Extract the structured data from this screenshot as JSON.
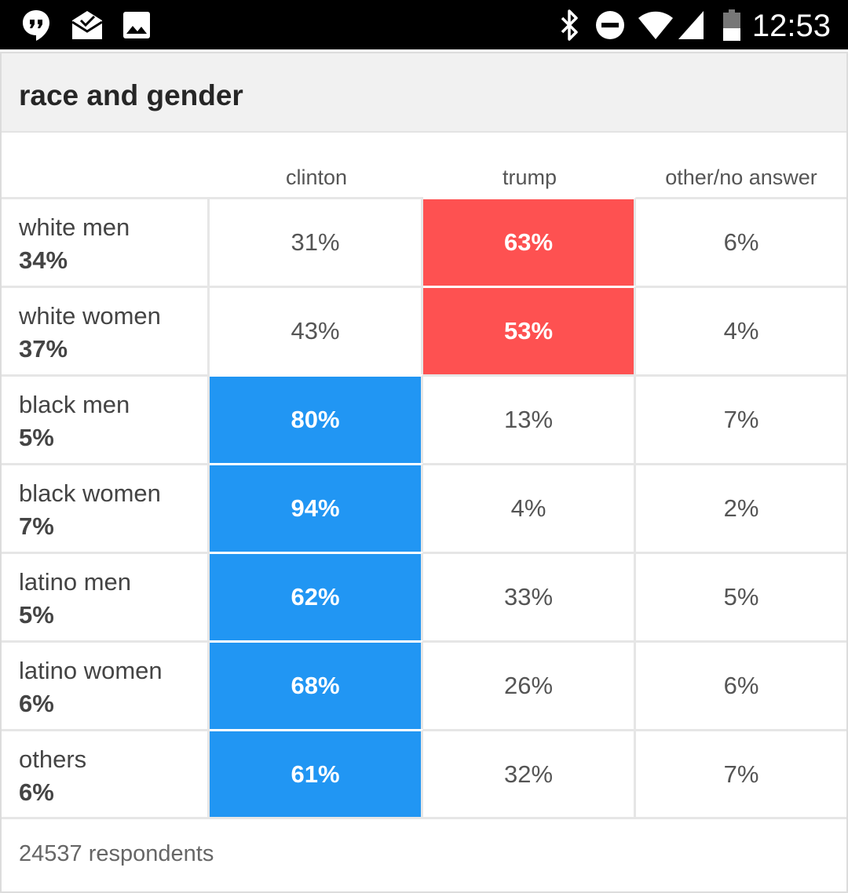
{
  "status_bar": {
    "time": "12:53",
    "left_icons": [
      "hangouts-icon",
      "mail-icon",
      "image-icon"
    ],
    "right_icons": [
      "bluetooth-icon",
      "do-not-disturb-icon",
      "wifi-icon",
      "signal-icon",
      "battery-icon"
    ]
  },
  "card": {
    "title": "race and gender",
    "columns": [
      "clinton",
      "trump",
      "other/no answer"
    ],
    "rows": [
      {
        "name": "white men",
        "share": "34%",
        "values": [
          "31%",
          "63%",
          "6%"
        ]
      },
      {
        "name": "white women",
        "share": "37%",
        "values": [
          "43%",
          "53%",
          "4%"
        ]
      },
      {
        "name": "black men",
        "share": "5%",
        "values": [
          "80%",
          "13%",
          "7%"
        ]
      },
      {
        "name": "black women",
        "share": "7%",
        "values": [
          "94%",
          "4%",
          "2%"
        ]
      },
      {
        "name": "latino men",
        "share": "5%",
        "values": [
          "62%",
          "33%",
          "5%"
        ]
      },
      {
        "name": "latino women",
        "share": "6%",
        "values": [
          "68%",
          "26%",
          "6%"
        ]
      },
      {
        "name": "others",
        "share": "6%",
        "values": [
          "61%",
          "32%",
          "7%"
        ]
      }
    ],
    "highlights": [
      "trump",
      "trump",
      "clinton",
      "clinton",
      "clinton",
      "clinton",
      "clinton"
    ],
    "footer": "24537 respondents"
  },
  "colors": {
    "clinton_highlight": "#2196f3",
    "trump_highlight": "#fe5151",
    "header_bg": "#f1f1f1",
    "status_bar_bg": "#000000"
  }
}
